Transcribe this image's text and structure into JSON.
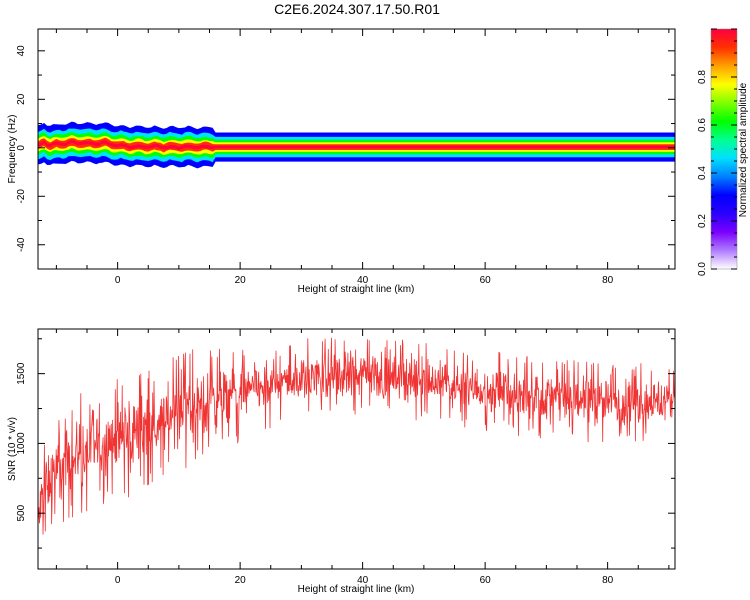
{
  "figure": {
    "title": "C2E6.2024.307.17.50.R01"
  },
  "chart_data": [
    {
      "type": "heatmap",
      "xlabel": "Height of straight line (km)",
      "ylabel": "Frequency (Hz)",
      "xlim": [
        -13,
        91
      ],
      "ylim": [
        -50,
        49
      ],
      "xticks": [
        0,
        20,
        40,
        60,
        80
      ],
      "yticks": [
        -40,
        -20,
        0,
        20,
        40
      ],
      "ridge": {
        "x": [
          -13,
          -12,
          -11,
          -10,
          -8,
          -6,
          -4,
          -2,
          0,
          2,
          5,
          8,
          10,
          12,
          14,
          16,
          18,
          20,
          30,
          40,
          50,
          60,
          70,
          80,
          90
        ],
        "freq": [
          0.5,
          2.5,
          0.8,
          1.5,
          2.0,
          2.0,
          1.8,
          2.0,
          1.0,
          0.6,
          0.5,
          0.4,
          0.3,
          0.4,
          0.3,
          0.3,
          0.3,
          0.3,
          0.3,
          0.3,
          0.3,
          0.3,
          0.3,
          0.3,
          0.3
        ]
      },
      "grid": false
    },
    {
      "type": "line",
      "xlabel": "Height of straight line (km)",
      "ylabel": "SNR (10 * v/v)",
      "xlim": [
        -13,
        91
      ],
      "ylim": [
        100,
        1820
      ],
      "xticks": [
        0,
        20,
        40,
        60,
        80
      ],
      "yticks": [
        500,
        1000,
        1500
      ],
      "series": [
        {
          "color": "#f03333",
          "envelope": {
            "x": [
              -13,
              -12,
              -10,
              -6,
              -2,
              2,
              6,
              10,
              14,
              18,
              22,
              26,
              30,
              35,
              40,
              45,
              50,
              55,
              60,
              65,
              70,
              75,
              80,
              85,
              90
            ],
            "low": [
              150,
              420,
              520,
              600,
              680,
              720,
              820,
              900,
              980,
              1050,
              1150,
              1200,
              1230,
              1270,
              1280,
              1260,
              1230,
              1200,
              1170,
              1130,
              1100,
              1090,
              1080,
              1070,
              1080
            ],
            "high": [
              700,
              950,
              1100,
              1280,
              1350,
              1420,
              1480,
              1560,
              1620,
              1600,
              1620,
              1650,
              1700,
              1720,
              1720,
              1700,
              1680,
              1640,
              1620,
              1580,
              1550,
              1540,
              1540,
              1520,
              1520
            ]
          }
        }
      ],
      "grid": false
    }
  ],
  "colorbar": {
    "label": "Normalized spectral amplitude",
    "range": [
      0,
      1
    ],
    "ticks": [
      0.0,
      0.2,
      0.4,
      0.6,
      0.8
    ],
    "colormap": [
      "#ffffff",
      "#b07cff",
      "#7a00ff",
      "#2a00ff",
      "#0000ff",
      "#0080ff",
      "#00e0ff",
      "#00ff90",
      "#00ff00",
      "#80ff00",
      "#ffff00",
      "#ffa000",
      "#ff3000",
      "#ff0040"
    ]
  }
}
